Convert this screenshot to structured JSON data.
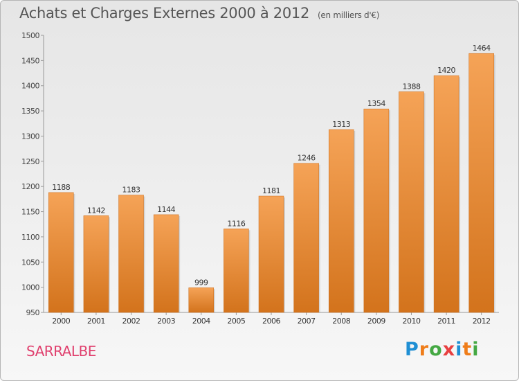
{
  "header": {
    "title": "Achats et Charges Externes 2000 à 2012",
    "subtitle": "(en milliers d'€)"
  },
  "footer": {
    "location": "SARRALBE",
    "logo_text": "Proxiti",
    "logo_colors": [
      "#1f8fd4",
      "#ef7d1a",
      "#44a843",
      "#e84040",
      "#1f8fd4",
      "#ef7d1a",
      "#44a843"
    ]
  },
  "colors": {
    "bar_top": "#f5a357",
    "bar_bottom": "#d3731c",
    "location": "#e0406e"
  },
  "chart_data": {
    "type": "bar",
    "title": "Achats et Charges Externes 2000 à 2012",
    "subtitle": "(en milliers d'€)",
    "categories": [
      "2000",
      "2001",
      "2002",
      "2003",
      "2004",
      "2005",
      "2006",
      "2007",
      "2008",
      "2009",
      "2010",
      "2011",
      "2012"
    ],
    "values": [
      1188,
      1142,
      1183,
      1144,
      999,
      1116,
      1181,
      1246,
      1313,
      1354,
      1388,
      1420,
      1464
    ],
    "ylim": [
      950,
      1500
    ],
    "yticks": [
      950,
      1000,
      1050,
      1100,
      1150,
      1200,
      1250,
      1300,
      1350,
      1400,
      1450,
      1500
    ],
    "xlabel": "",
    "ylabel": "",
    "grid": false,
    "data_labels": true
  }
}
